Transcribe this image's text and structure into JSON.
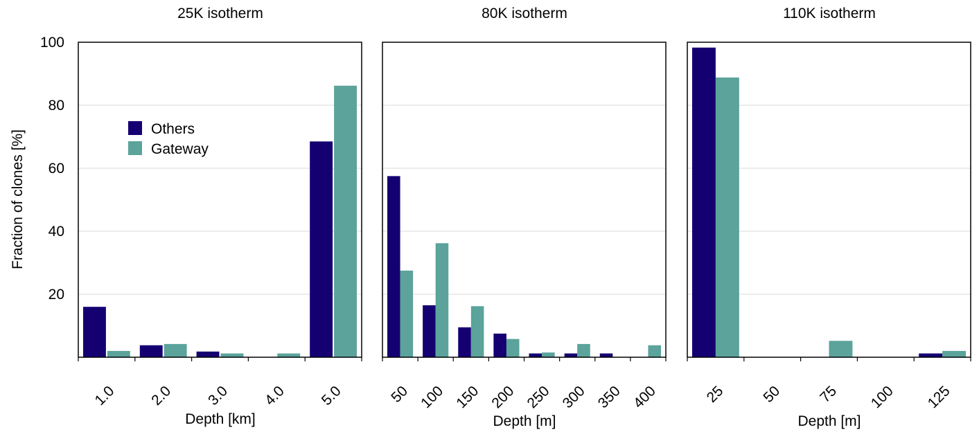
{
  "shared": {
    "ylabel": "Fraction of clones [%]",
    "yticks": [
      20,
      40,
      60,
      80,
      100
    ],
    "ylim": [
      0,
      100
    ],
    "grid": true,
    "colors": {
      "Others": "#140071",
      "Gateway": "#5ba39b",
      "grid": "#d9d9d9"
    }
  },
  "legend": {
    "placement": "upper-left of first panel",
    "items": [
      {
        "name": "Others",
        "color": "#140071"
      },
      {
        "name": "Gateway",
        "color": "#5ba39b"
      }
    ]
  },
  "chart_data": [
    {
      "type": "bar",
      "title": "25K isotherm",
      "xlabel": "Depth [km]",
      "ylabel": "Fraction of clones [%]",
      "ylim": [
        0,
        100
      ],
      "categories": [
        "1.0",
        "2.0",
        "3.0",
        "4.0",
        "5.0"
      ],
      "series": [
        {
          "name": "Others",
          "values": [
            16,
            3.8,
            1.8,
            0,
            68.5
          ]
        },
        {
          "name": "Gateway",
          "values": [
            2,
            4.2,
            1.2,
            1.2,
            86.2
          ]
        }
      ]
    },
    {
      "type": "bar",
      "title": "80K isotherm",
      "xlabel": "Depth [m]",
      "ylim": [
        0,
        100
      ],
      "categories": [
        "50",
        "100",
        "150",
        "200",
        "250",
        "300",
        "350",
        "400"
      ],
      "series": [
        {
          "name": "Others",
          "values": [
            57.5,
            16.5,
            9.5,
            7.5,
            1.2,
            1.2,
            1.2,
            0
          ]
        },
        {
          "name": "Gateway",
          "values": [
            27.5,
            36.2,
            16.2,
            5.8,
            1.5,
            4.2,
            0,
            3.8
          ]
        }
      ]
    },
    {
      "type": "bar",
      "title": "110K isotherm",
      "xlabel": "Depth [m]",
      "ylim": [
        0,
        100
      ],
      "categories": [
        "25",
        "50",
        "75",
        "100",
        "125"
      ],
      "series": [
        {
          "name": "Others",
          "values": [
            98.3,
            0,
            0,
            0,
            1.2
          ]
        },
        {
          "name": "Gateway",
          "values": [
            88.8,
            0,
            5.2,
            0,
            2
          ]
        }
      ]
    }
  ]
}
